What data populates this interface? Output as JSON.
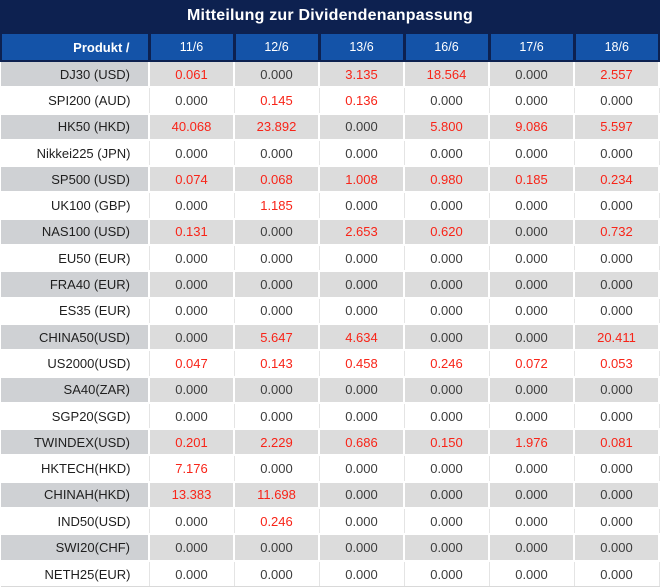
{
  "title": "Mitteilung zur Dividendenanpassung",
  "colors": {
    "title_bg": "#0d2150",
    "header_bg": "#1453a8",
    "row_stripe": "#dcdcdc",
    "product_stripe": "#cfd1d4",
    "value_red": "#f82418",
    "value_black": "#3d3d3d"
  },
  "table": {
    "product_header": "Produkt /",
    "date_headers": [
      "11/6",
      "12/6",
      "13/6",
      "16/6",
      "17/6",
      "18/6"
    ],
    "rows": [
      {
        "product": "DJ30 (USD)",
        "values": [
          "0.061",
          "0.000",
          "3.135",
          "18.564",
          "0.000",
          "2.557"
        ],
        "red": [
          true,
          false,
          true,
          true,
          false,
          true
        ]
      },
      {
        "product": "SPI200 (AUD)",
        "values": [
          "0.000",
          "0.145",
          "0.136",
          "0.000",
          "0.000",
          "0.000"
        ],
        "red": [
          false,
          true,
          true,
          false,
          false,
          false
        ]
      },
      {
        "product": "HK50 (HKD)",
        "values": [
          "40.068",
          "23.892",
          "0.000",
          "5.800",
          "9.086",
          "5.597"
        ],
        "red": [
          true,
          true,
          false,
          true,
          true,
          true
        ]
      },
      {
        "product": "Nikkei225 (JPN)",
        "values": [
          "0.000",
          "0.000",
          "0.000",
          "0.000",
          "0.000",
          "0.000"
        ],
        "red": [
          false,
          false,
          false,
          false,
          false,
          false
        ]
      },
      {
        "product": "SP500 (USD)",
        "values": [
          "0.074",
          "0.068",
          "1.008",
          "0.980",
          "0.185",
          "0.234"
        ],
        "red": [
          true,
          true,
          true,
          true,
          true,
          true
        ]
      },
      {
        "product": "UK100 (GBP)",
        "values": [
          "0.000",
          "1.185",
          "0.000",
          "0.000",
          "0.000",
          "0.000"
        ],
        "red": [
          false,
          true,
          false,
          false,
          false,
          false
        ]
      },
      {
        "product": "NAS100 (USD)",
        "values": [
          "0.131",
          "0.000",
          "2.653",
          "0.620",
          "0.000",
          "0.732"
        ],
        "red": [
          true,
          false,
          true,
          true,
          false,
          true
        ]
      },
      {
        "product": "EU50 (EUR)",
        "values": [
          "0.000",
          "0.000",
          "0.000",
          "0.000",
          "0.000",
          "0.000"
        ],
        "red": [
          false,
          false,
          false,
          false,
          false,
          false
        ]
      },
      {
        "product": "FRA40 (EUR)",
        "values": [
          "0.000",
          "0.000",
          "0.000",
          "0.000",
          "0.000",
          "0.000"
        ],
        "red": [
          false,
          false,
          false,
          false,
          false,
          false
        ]
      },
      {
        "product": "ES35 (EUR)",
        "values": [
          "0.000",
          "0.000",
          "0.000",
          "0.000",
          "0.000",
          "0.000"
        ],
        "red": [
          false,
          false,
          false,
          false,
          false,
          false
        ]
      },
      {
        "product": "CHINA50(USD)",
        "values": [
          "0.000",
          "5.647",
          "4.634",
          "0.000",
          "0.000",
          "20.411"
        ],
        "red": [
          false,
          true,
          true,
          false,
          false,
          true
        ]
      },
      {
        "product": "US2000(USD)",
        "values": [
          "0.047",
          "0.143",
          "0.458",
          "0.246",
          "0.072",
          "0.053"
        ],
        "red": [
          true,
          true,
          true,
          true,
          true,
          true
        ]
      },
      {
        "product": "SA40(ZAR)",
        "values": [
          "0.000",
          "0.000",
          "0.000",
          "0.000",
          "0.000",
          "0.000"
        ],
        "red": [
          false,
          false,
          false,
          false,
          false,
          false
        ]
      },
      {
        "product": "SGP20(SGD)",
        "values": [
          "0.000",
          "0.000",
          "0.000",
          "0.000",
          "0.000",
          "0.000"
        ],
        "red": [
          false,
          false,
          false,
          false,
          false,
          false
        ]
      },
      {
        "product": "TWINDEX(USD)",
        "values": [
          "0.201",
          "2.229",
          "0.686",
          "0.150",
          "1.976",
          "0.081"
        ],
        "red": [
          true,
          true,
          true,
          true,
          true,
          true
        ]
      },
      {
        "product": "HKTECH(HKD)",
        "values": [
          "7.176",
          "0.000",
          "0.000",
          "0.000",
          "0.000",
          "0.000"
        ],
        "red": [
          true,
          false,
          false,
          false,
          false,
          false
        ]
      },
      {
        "product": "CHINAH(HKD)",
        "values": [
          "13.383",
          "11.698",
          "0.000",
          "0.000",
          "0.000",
          "0.000"
        ],
        "red": [
          true,
          true,
          false,
          false,
          false,
          false
        ]
      },
      {
        "product": "IND50(USD)",
        "values": [
          "0.000",
          "0.246",
          "0.000",
          "0.000",
          "0.000",
          "0.000"
        ],
        "red": [
          false,
          true,
          false,
          false,
          false,
          false
        ]
      },
      {
        "product": "SWI20(CHF)",
        "values": [
          "0.000",
          "0.000",
          "0.000",
          "0.000",
          "0.000",
          "0.000"
        ],
        "red": [
          false,
          false,
          false,
          false,
          false,
          false
        ]
      },
      {
        "product": "NETH25(EUR)",
        "values": [
          "0.000",
          "0.000",
          "0.000",
          "0.000",
          "0.000",
          "0.000"
        ],
        "red": [
          false,
          false,
          false,
          false,
          false,
          false
        ]
      }
    ]
  }
}
